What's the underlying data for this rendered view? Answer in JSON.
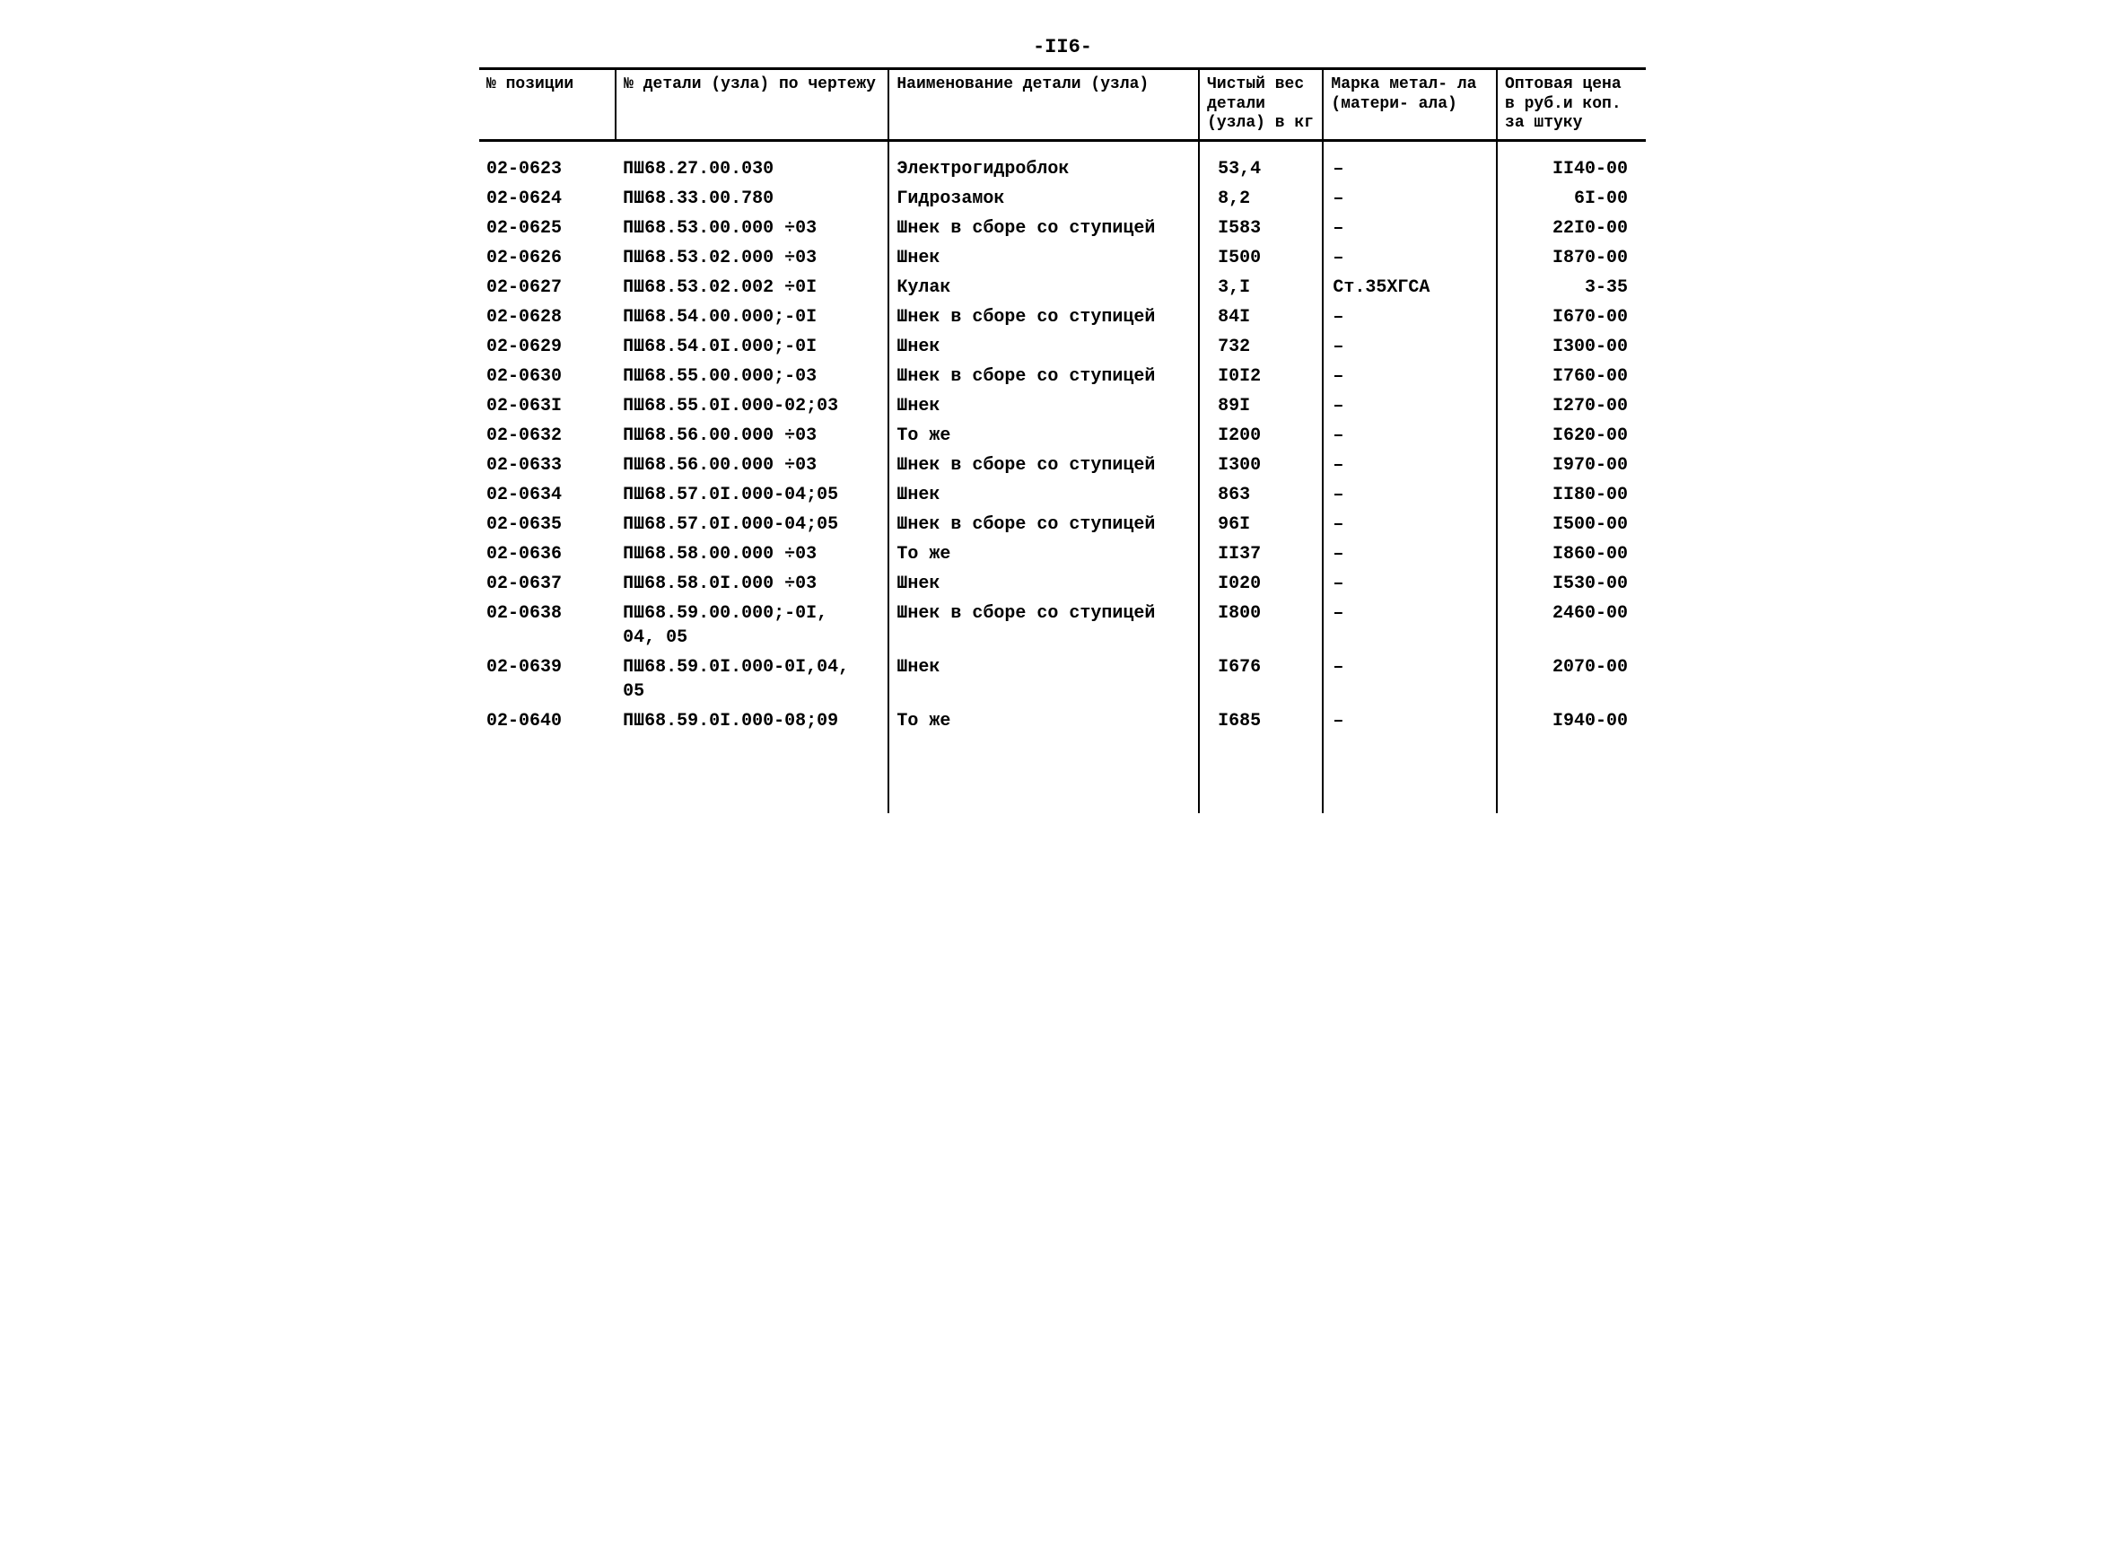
{
  "page_number": "-II6-",
  "headers": {
    "position": "№\nпозиции",
    "detail_number": "№ детали (узла) по\nчертежу",
    "name": "Наименование детали\n(узла)",
    "weight": "Чистый\nвес\nдетали\n(узла) в\nкг",
    "mark": "Марка метал-\nла (матери-\nала)",
    "price": "Оптовая\nцена в\nруб.и коп.\nза штуку"
  },
  "rows": [
    {
      "pos": "02-0623",
      "detail": "ПШ68.27.00.030",
      "name": "Электрогидроблок",
      "weight": "53,4",
      "mark": "–",
      "price": "II40-00"
    },
    {
      "pos": "02-0624",
      "detail": "ПШ68.33.00.780",
      "name": "Гидрозамок",
      "weight": "8,2",
      "mark": "–",
      "price": "6I-00"
    },
    {
      "pos": "02-0625",
      "detail": "ПШ68.53.00.000 ÷03",
      "name": "Шнек в сборе со ступицей",
      "weight": "I583",
      "mark": "–",
      "price": "22I0-00"
    },
    {
      "pos": "02-0626",
      "detail": "ПШ68.53.02.000 ÷03",
      "name": "Шнек",
      "weight": "I500",
      "mark": "–",
      "price": "I870-00"
    },
    {
      "pos": "02-0627",
      "detail": "ПШ68.53.02.002 ÷0I",
      "name": "Кулак",
      "weight": "3,I",
      "mark": "Ст.35ХГСА",
      "price": "3-35"
    },
    {
      "pos": "02-0628",
      "detail": "ПШ68.54.00.000;-0I",
      "name": "Шнек в сборе со ступицей",
      "weight": "84I",
      "mark": "–",
      "price": "I670-00"
    },
    {
      "pos": "02-0629",
      "detail": "ПШ68.54.0I.000;-0I",
      "name": "Шнек",
      "weight": "732",
      "mark": "–",
      "price": "I300-00"
    },
    {
      "pos": "02-0630",
      "detail": "ПШ68.55.00.000;-03",
      "name": "Шнек в сборе со ступицей",
      "weight": "I0I2",
      "mark": "–",
      "price": "I760-00"
    },
    {
      "pos": "02-063I",
      "detail": "ПШ68.55.0I.000-02;03",
      "name": "Шнек",
      "weight": "89I",
      "mark": "–",
      "price": "I270-00"
    },
    {
      "pos": "02-0632",
      "detail": "ПШ68.56.00.000 ÷03",
      "name": "То же",
      "weight": "I200",
      "mark": "–",
      "price": "I620-00"
    },
    {
      "pos": "02-0633",
      "detail": "ПШ68.56.00.000 ÷03",
      "name": "Шнек в сборе со ступицей",
      "weight": "I300",
      "mark": "–",
      "price": "I970-00"
    },
    {
      "pos": "02-0634",
      "detail": "ПШ68.57.0I.000-04;05",
      "name": "Шнек",
      "weight": "863",
      "mark": "–",
      "price": "II80-00"
    },
    {
      "pos": "02-0635",
      "detail": "ПШ68.57.0I.000-04;05",
      "name": "Шнек в сборе со ступицей",
      "weight": "96I",
      "mark": "–",
      "price": "I500-00"
    },
    {
      "pos": "02-0636",
      "detail": "ПШ68.58.00.000 ÷03",
      "name": "То же",
      "weight": "II37",
      "mark": "–",
      "price": "I860-00"
    },
    {
      "pos": "02-0637",
      "detail": "ПШ68.58.0I.000 ÷03",
      "name": "Шнек",
      "weight": "I020",
      "mark": "–",
      "price": "I530-00"
    },
    {
      "pos": "02-0638",
      "detail": "ПШ68.59.00.000;-0I,\n04, 05",
      "name": "Шнек в сборе со ступицей",
      "weight": "I800",
      "mark": "–",
      "price": "2460-00"
    },
    {
      "pos": "02-0639",
      "detail": "ПШ68.59.0I.000-0I,04,\n05",
      "name": "Шнек",
      "weight": "I676",
      "mark": "–",
      "price": "2070-00"
    },
    {
      "pos": "02-0640",
      "detail": "ПШ68.59.0I.000-08;09",
      "name": "То же",
      "weight": "I685",
      "mark": "–",
      "price": "I940-00"
    }
  ],
  "styling": {
    "font_family": "Courier New",
    "background_color": "#ffffff",
    "text_color": "#000000",
    "border_color": "#000000",
    "header_border_width": 3,
    "body_border_width": 2,
    "font_size_header": 18,
    "font_size_body": 20,
    "font_weight": "bold",
    "column_widths_pct": [
      11,
      22,
      25,
      10,
      14,
      12
    ]
  }
}
